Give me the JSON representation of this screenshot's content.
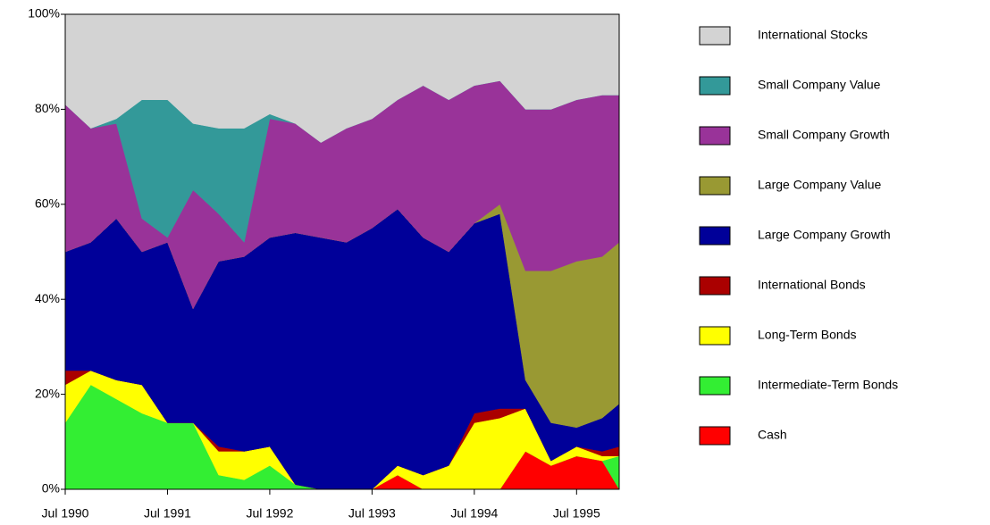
{
  "chart_data": {
    "type": "stacked_area",
    "x": [
      "1990-07",
      "1990-10",
      "1991-01",
      "1991-04",
      "1991-07",
      "1991-10",
      "1992-01",
      "1992-04",
      "1992-07",
      "1992-10",
      "1993-01",
      "1993-04",
      "1993-07",
      "1993-10",
      "1994-01",
      "1994-04",
      "1994-07",
      "1994-10",
      "1995-01",
      "1995-04",
      "1995-07",
      "1995-10",
      "1995-12"
    ],
    "xlim": [
      "1990-07",
      "1995-12"
    ],
    "xticks": [
      {
        "value": "1990-07",
        "label": "Jul 1990"
      },
      {
        "value": "1991-07",
        "label": "Jul 1991"
      },
      {
        "value": "1992-07",
        "label": "Jul 1992"
      },
      {
        "value": "1993-07",
        "label": "Jul 1993"
      },
      {
        "value": "1994-07",
        "label": "Jul 1994"
      },
      {
        "value": "1995-07",
        "label": "Jul 1995"
      }
    ],
    "ylim": [
      0,
      100
    ],
    "yticks": [
      {
        "value": 0,
        "label": "0%"
      },
      {
        "value": 20,
        "label": "20%"
      },
      {
        "value": 40,
        "label": "40%"
      },
      {
        "value": 60,
        "label": "60%"
      },
      {
        "value": 80,
        "label": "80%"
      },
      {
        "value": 100,
        "label": "100%"
      }
    ],
    "legend": "right",
    "series": [
      {
        "name": "Cash",
        "color": "#ff0000",
        "values": [
          0,
          0,
          0,
          0,
          0,
          0,
          0,
          0,
          0,
          0,
          0,
          0,
          0,
          3,
          0,
          0,
          0,
          0,
          8,
          5,
          7,
          6,
          0
        ]
      },
      {
        "name": "Intermediate-Term Bonds",
        "color": "#33ee33",
        "values": [
          14,
          22,
          19,
          16,
          14,
          14,
          3,
          2,
          5,
          1,
          0,
          0,
          0,
          0,
          0,
          0,
          0,
          0,
          0,
          0,
          0,
          0,
          7
        ]
      },
      {
        "name": "Long-Term Bonds",
        "color": "#ffff00",
        "values": [
          8,
          3,
          4,
          6,
          0,
          0,
          5,
          6,
          4,
          0,
          0,
          0,
          0,
          2,
          3,
          5,
          14,
          15,
          9,
          1,
          2,
          1,
          0
        ]
      },
      {
        "name": "International Bonds",
        "color": "#aa0000",
        "values": [
          3,
          0,
          0,
          0,
          0,
          0,
          1,
          0,
          0,
          0,
          0,
          0,
          0,
          0,
          0,
          0,
          2,
          2,
          0,
          0,
          0,
          1,
          2
        ]
      },
      {
        "name": "Large Company Growth",
        "color": "#000099",
        "values": [
          25,
          27,
          34,
          28,
          38,
          24,
          39,
          41,
          44,
          53,
          53,
          52,
          55,
          54,
          50,
          45,
          40,
          41,
          6,
          8,
          4,
          7,
          9
        ]
      },
      {
        "name": "Large Company Value",
        "color": "#999933",
        "values": [
          0,
          0,
          0,
          0,
          0,
          0,
          0,
          0,
          0,
          0,
          0,
          0,
          0,
          0,
          0,
          0,
          0,
          2,
          23,
          32,
          35,
          34,
          34
        ]
      },
      {
        "name": "Small Company Growth",
        "color": "#993399",
        "values": [
          31,
          24,
          20,
          7,
          1,
          25,
          10,
          3,
          25,
          23,
          20,
          24,
          23,
          23,
          32,
          32,
          29,
          26,
          34,
          34,
          34,
          34,
          31
        ]
      },
      {
        "name": "Small Company Value",
        "color": "#339999",
        "values": [
          0,
          0,
          1,
          25,
          29,
          14,
          18,
          24,
          1,
          0,
          0,
          0,
          0,
          0,
          0,
          0,
          0,
          0,
          0,
          0,
          0,
          0,
          0
        ]
      },
      {
        "name": "International Stocks",
        "color": "#d3d3d3",
        "values": [
          19,
          24,
          22,
          18,
          18,
          23,
          24,
          24,
          21,
          23,
          27,
          24,
          22,
          18,
          15,
          18,
          15,
          14,
          20,
          20,
          18,
          17,
          17
        ]
      }
    ]
  }
}
